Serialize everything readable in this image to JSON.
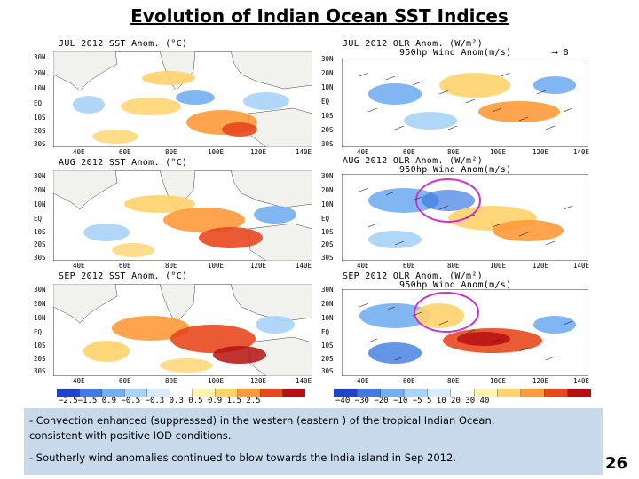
{
  "title": "Evolution of Indian Ocean SST Indices",
  "panels": {
    "sst_jul": "JUL 2012 SST Anom. (°C)",
    "sst_aug": "AUG 2012 SST Anom. (°C)",
    "sst_sep": "SEP 2012 SST Anom. (°C)",
    "olr_jul": "JUL 2012 OLR Anom. (W/m²)",
    "olr_aug": "AUG 2012 OLR Anom. (W/m²)",
    "olr_sep": "SEP 2012 OLR Anom. (W/m²)",
    "wind_sub": "950hp Wind Anom(m/s)",
    "wind_sub_aug": "950hp Wind Anom(m/s)",
    "wind_sub_sep": "950hp Wind Anom(m/s)",
    "ref_arrow_label": "8"
  },
  "latitudes": [
    "30N",
    "20N",
    "10N",
    "EQ",
    "10S",
    "20S",
    "30S"
  ],
  "longitudes": [
    "40E",
    "60E",
    "80E",
    "100E",
    "120E",
    "140E"
  ],
  "sst_colorbar": {
    "labels": "−2.5−1.5 0.9 −0.5 −0.3 0.3  0.5  0.9  1.5  2.5",
    "colors": [
      "#1f44c9",
      "#3f7be0",
      "#72aef0",
      "#a9d3f7",
      "#d8ecfb",
      "#ffffff",
      "#fff3b0",
      "#ffd36b",
      "#ff9a3b",
      "#e8481e",
      "#b5100f"
    ]
  },
  "olr_colorbar": {
    "labels": "−40 −30 −20 −10  −5   5  10  20  30  40",
    "colors": [
      "#1f44c9",
      "#3f7be0",
      "#72aef0",
      "#a9d3f7",
      "#d8ecfb",
      "#ffffff",
      "#fff3b0",
      "#ffd36b",
      "#ff9a3b",
      "#e8481e",
      "#b5100f"
    ]
  },
  "notes": {
    "line1": "- Convection enhanced (suppressed) in the western (eastern ) of the tropical Indian Ocean,",
    "line2": "consistent with positive IOD conditions.",
    "line3": "- Southerly  wind anomalies continued to blow towards  the India island in Sep 2012."
  },
  "page_number": "26"
}
